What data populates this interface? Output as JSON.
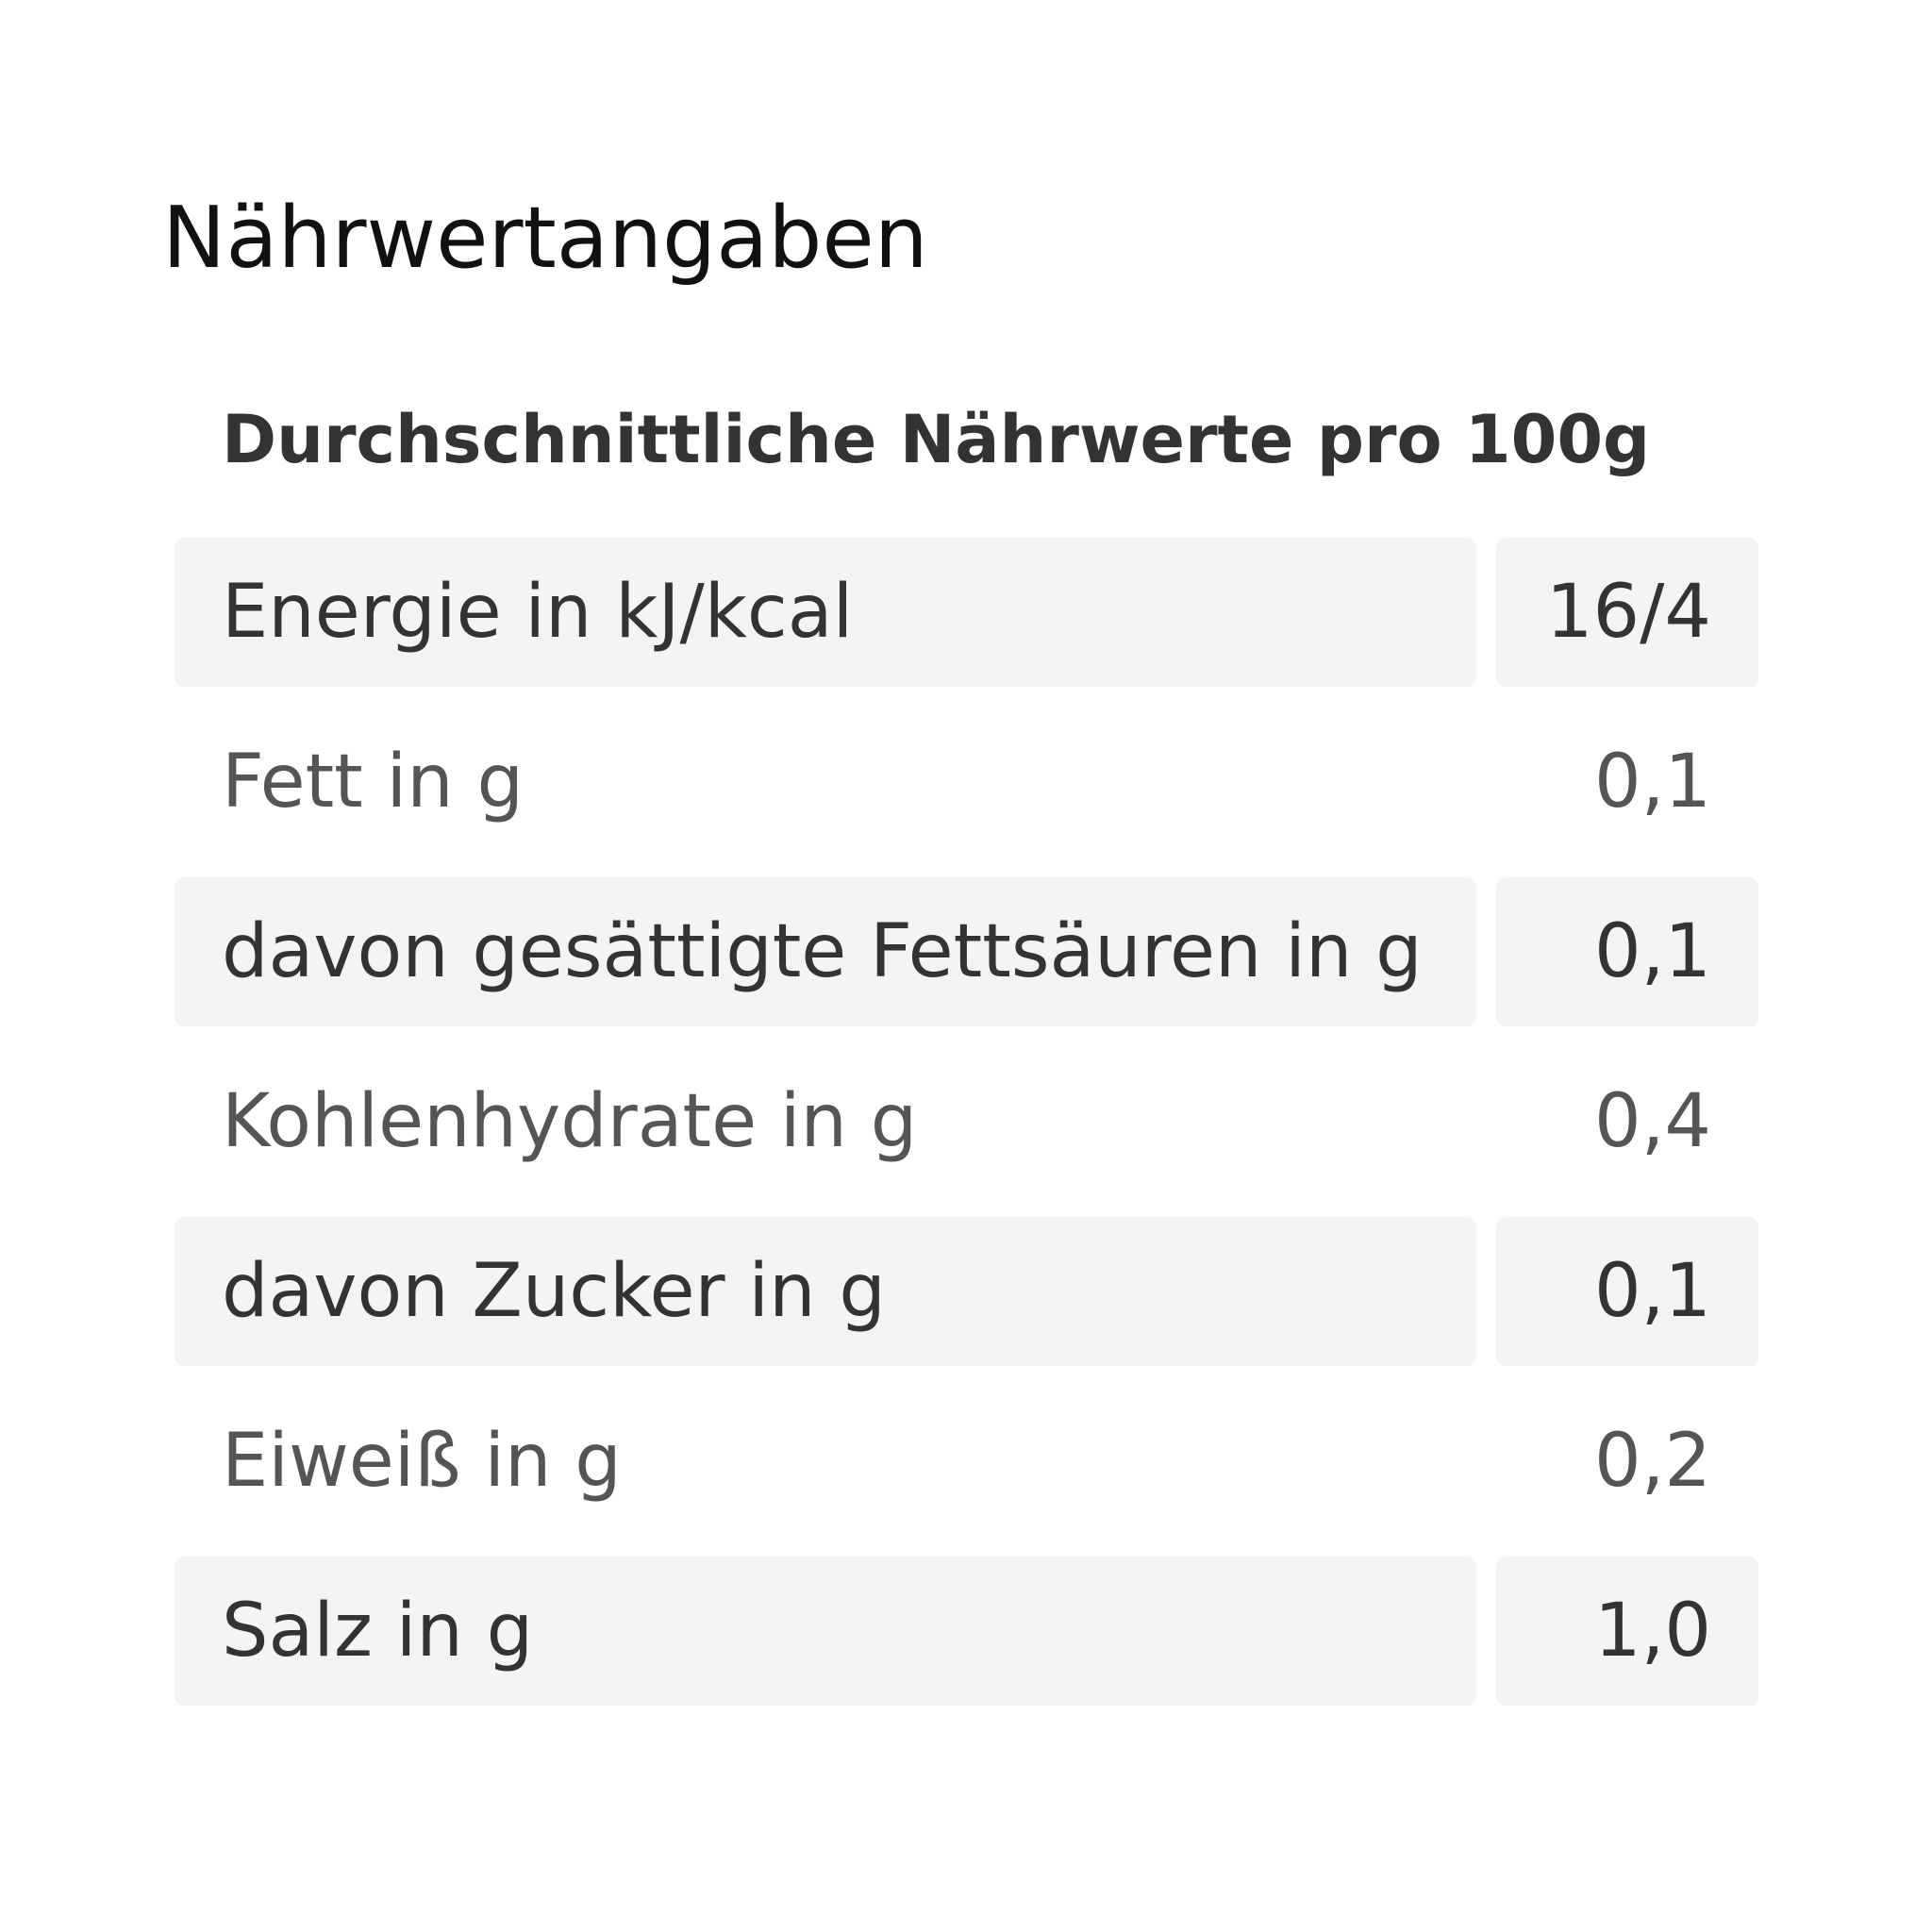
{
  "title": "Nährwertangaben",
  "table": {
    "header": "Durchschnittliche Nährwerte pro 100g",
    "rows": [
      [
        "Energie in kJ/kcal",
        "16/4"
      ],
      [
        "Fett in g",
        "0,1"
      ],
      [
        "davon gesättigte Fettsäuren in g",
        "0,1"
      ],
      [
        "Kohlenhydrate in g",
        "0,4"
      ],
      [
        "davon Zucker in g",
        "0,1"
      ],
      [
        "Eiweiß in g",
        "0,2"
      ],
      [
        "Salz in g",
        "1,0"
      ]
    ]
  }
}
